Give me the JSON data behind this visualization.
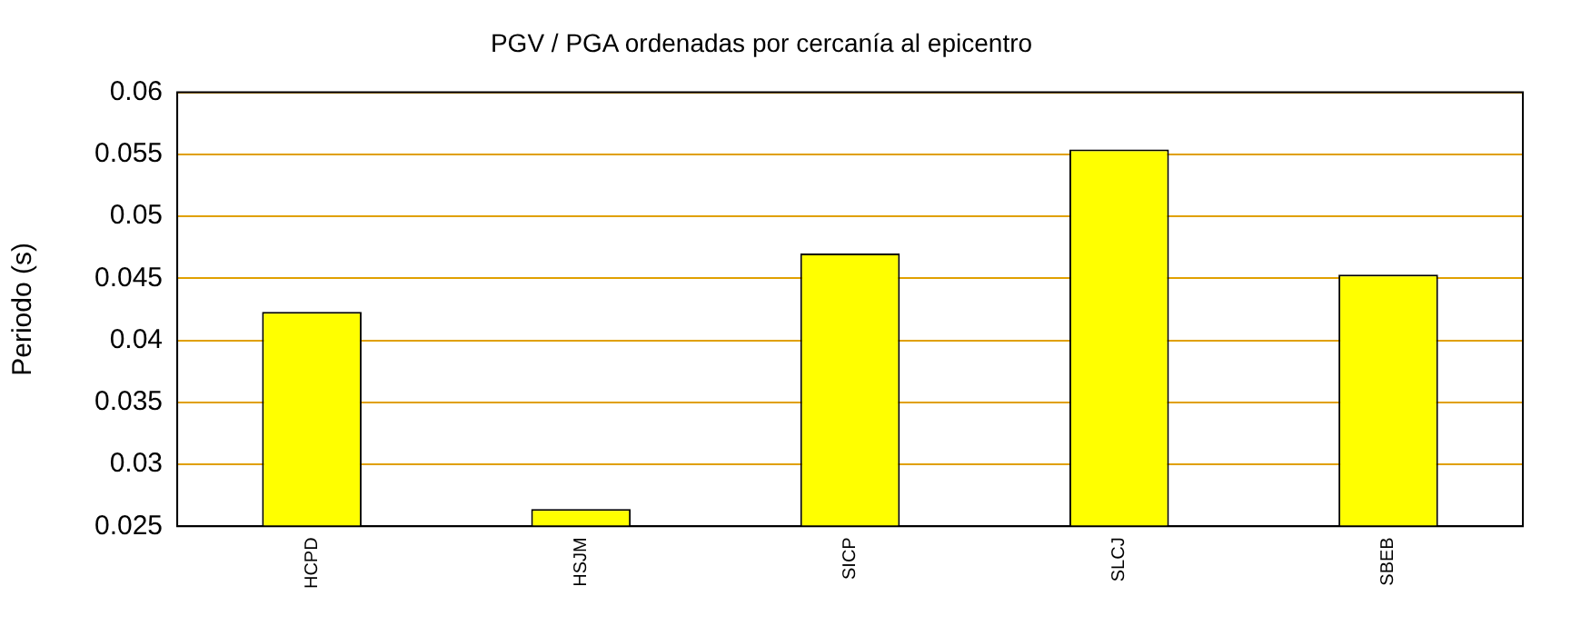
{
  "chart_data": {
    "type": "bar",
    "title": "PGV / PGA ordenadas por cercanía al epicentro",
    "ylabel": "Periodo (s)",
    "categories": [
      "HCPD",
      "HSJM",
      "SICP",
      "SLCJ",
      "SBEB"
    ],
    "values": [
      0.0423,
      0.0264,
      0.047,
      0.0554,
      0.0453
    ],
    "color": "#ffff00",
    "ylim": [
      0.025,
      0.06
    ],
    "yticks": [
      0.025,
      0.03,
      0.035,
      0.04,
      0.045,
      0.05,
      0.055,
      0.06
    ],
    "grid": "y",
    "legend": false
  }
}
